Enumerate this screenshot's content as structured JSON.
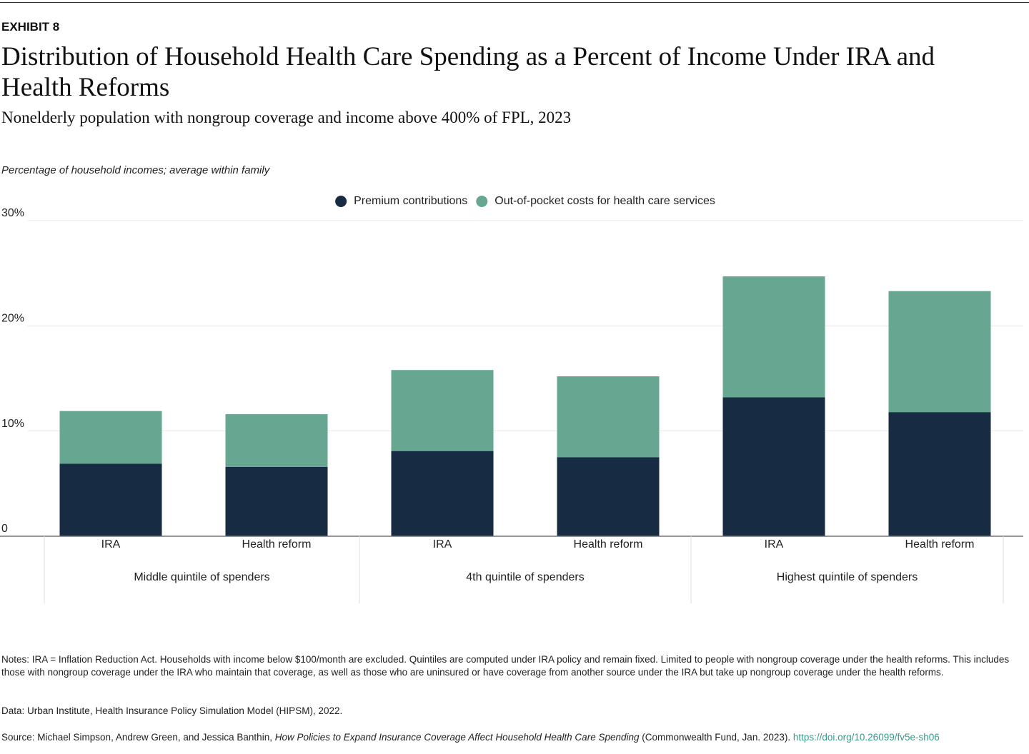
{
  "exhibit": "EXHIBIT 8",
  "chart_data": {
    "type": "stacked-bar",
    "title": "Distribution of Household Health Care Spending as a Percent of Income Under IRA and Health Reforms",
    "subtitle": "Nonelderly population with nongroup coverage and income above 400% of FPL, 2023",
    "y_label": "Percentage of household incomes; average within family",
    "groups": [
      {
        "name": "Middle quintile of spenders",
        "categories": [
          "IRA",
          "Health reform"
        ]
      },
      {
        "name": "4th quintile of spenders",
        "categories": [
          "IRA",
          "Health reform"
        ]
      },
      {
        "name": "Highest quintile of spenders",
        "categories": [
          "IRA",
          "Health reform"
        ]
      }
    ],
    "series": [
      {
        "name": "Premium contributions",
        "color": "#172b43",
        "values": [
          6.9,
          6.6,
          8.1,
          7.5,
          13.2,
          11.8
        ]
      },
      {
        "name": "Out-of-pocket costs for health care services",
        "color": "#67a792",
        "values": [
          5.0,
          5.0,
          7.7,
          7.7,
          11.5,
          11.5
        ]
      }
    ],
    "ylim": [
      0,
      30
    ],
    "yticks": [
      0,
      {
        "value": 10,
        "label": "10%"
      },
      {
        "value": 20,
        "label": "20%"
      },
      {
        "value": 30,
        "label": "30%"
      }
    ],
    "grid": true,
    "legend": "top"
  },
  "notes": "Notes: IRA = Inflation Reduction Act. Households with income below $100/month are excluded. Quintiles are computed under IRA policy and remain fixed. Limited to people with nongroup coverage under the health reforms. This includes those with nongroup coverage under the IRA who maintain that coverage, as well as those who are uninsured or have coverage from another source under the IRA but take up nongroup coverage under the health reforms.",
  "data_source": "Data: Urban Institute, Health Insurance Policy Simulation Model (HIPSM), 2022.",
  "source": {
    "prefix": "Source: Michael Simpson, Andrew Green, and Jessica Banthin, ",
    "title": "How Policies to Expand Insurance Coverage Affect Household Health Care Spending",
    "suffix": " (Commonwealth Fund, Jan. 2023). ",
    "link": "https://doi.org/10.26099/fv5e-sh06"
  }
}
